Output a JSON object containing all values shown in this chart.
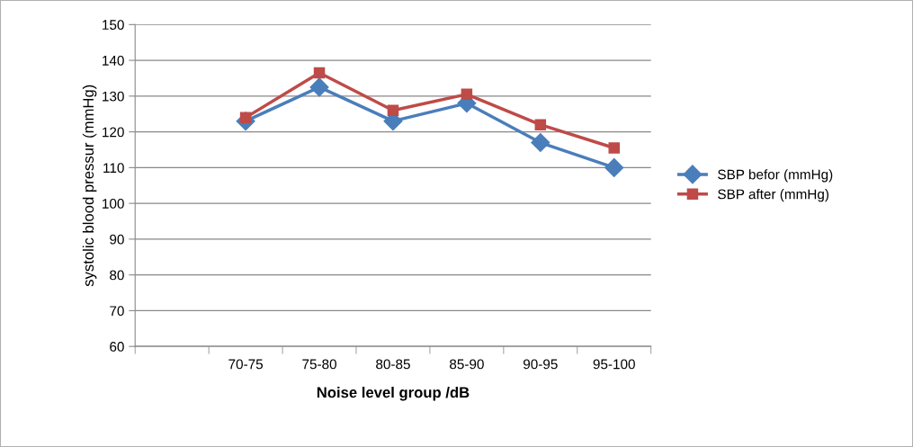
{
  "chart_data": {
    "type": "line",
    "xlabel": "Noise level group /dB",
    "ylabel": "systolic blood pressur (mmHg)",
    "categories": [
      null,
      "70-75",
      "75-80",
      "80-85",
      "85-90",
      "90-95",
      "95-100"
    ],
    "series": [
      {
        "name": "SBP befor (mmHg)",
        "color": "#4a7ebb",
        "marker": "diamond",
        "values": [
          null,
          123,
          132.5,
          123,
          128,
          117,
          110
        ]
      },
      {
        "name": "SBP after (mmHg)",
        "color": "#be4b48",
        "marker": "square",
        "values": [
          null,
          124,
          136.5,
          126,
          130.5,
          122,
          115.5
        ]
      }
    ],
    "ylim": [
      60,
      150
    ],
    "yticks": [
      60,
      70,
      80,
      90,
      100,
      110,
      120,
      130,
      140,
      150
    ],
    "grid": "y",
    "legend": "right",
    "line_style": "solid"
  }
}
